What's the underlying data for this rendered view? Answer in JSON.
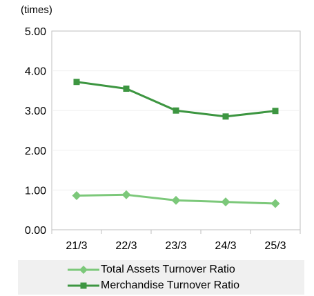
{
  "chart_data": {
    "type": "line",
    "ylabel_unit": "(times)",
    "categories": [
      "21/3",
      "22/3",
      "23/3",
      "24/3",
      "25/3"
    ],
    "y_tick_labels": [
      "0.00",
      "1.00",
      "2.00",
      "3.00",
      "4.00",
      "5.00"
    ],
    "ylim": [
      0,
      5
    ],
    "grid": true,
    "legend_position": "bottom",
    "series": [
      {
        "name": "Total Assets Turnover Ratio",
        "marker": "diamond",
        "color": "#7cc87a",
        "values": [
          0.86,
          0.88,
          0.74,
          0.7,
          0.66
        ]
      },
      {
        "name": "Merchandise Turnover Ratio",
        "marker": "square",
        "color": "#3d9641",
        "values": [
          3.72,
          3.55,
          3.0,
          2.85,
          2.99
        ]
      }
    ]
  }
}
